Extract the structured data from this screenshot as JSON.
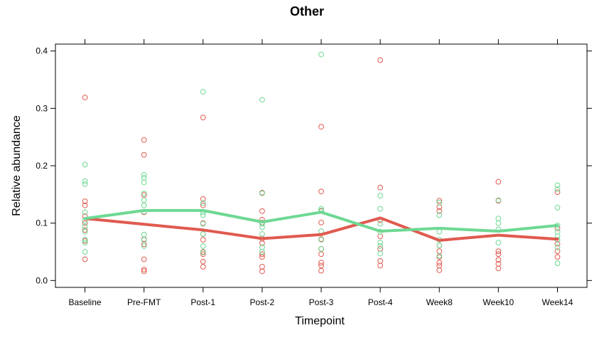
{
  "chart_data": {
    "type": "scatter",
    "title": "Other",
    "xlabel": "Timepoint",
    "ylabel": "Relative abundance",
    "categories": [
      "Baseline",
      "Pre-FMT",
      "Post-1",
      "Post-2",
      "Post-3",
      "Post-4",
      "Week8",
      "Week10",
      "Week14"
    ],
    "ylim": [
      -0.012,
      0.412
    ],
    "yticks": [
      0.0,
      0.1,
      0.2,
      0.3,
      0.4
    ],
    "grid": false,
    "series": [
      {
        "color": "#e05a4f",
        "mean_line": [
          0.108,
          0.098,
          0.088,
          0.073,
          0.08,
          0.109,
          0.07,
          0.079,
          0.072
        ],
        "points": [
          [
            0.319,
            0.138,
            0.131,
            0.112,
            0.1,
            0.088,
            0.069,
            0.037
          ],
          [
            0.245,
            0.219,
            0.149,
            0.119,
            0.072,
            0.063,
            0.037,
            0.019,
            0.016
          ],
          [
            0.284,
            0.142,
            0.131,
            0.1,
            0.081,
            0.071,
            0.05,
            0.046,
            0.033,
            0.024
          ],
          [
            0.153,
            0.121,
            0.106,
            0.101,
            0.073,
            0.065,
            0.046,
            0.041,
            0.024,
            0.016
          ],
          [
            0.268,
            0.155,
            0.121,
            0.101,
            0.072,
            0.055,
            0.046,
            0.031,
            0.026,
            0.017
          ],
          [
            0.384,
            0.162,
            0.105,
            0.077,
            0.055,
            0.034,
            0.026
          ],
          [
            0.139,
            0.128,
            0.121,
            0.061,
            0.051,
            0.041,
            0.031,
            0.026,
            0.018
          ],
          [
            0.172,
            0.139,
            0.051,
            0.046,
            0.036,
            0.029,
            0.021
          ],
          [
            0.154,
            0.091,
            0.064,
            0.051,
            0.041
          ]
        ]
      },
      {
        "color": "#6ed893",
        "mean_line": [
          0.108,
          0.122,
          0.122,
          0.102,
          0.119,
          0.086,
          0.091,
          0.086,
          0.096
        ],
        "points": [
          [
            0.202,
            0.173,
            0.168,
            0.119,
            0.104,
            0.094,
            0.085,
            0.071,
            0.066,
            0.05
          ],
          [
            0.184,
            0.179,
            0.171,
            0.152,
            0.14,
            0.131,
            0.12,
            0.08,
            0.071,
            0.06
          ],
          [
            0.329,
            0.135,
            0.119,
            0.114,
            0.099,
            0.081,
            0.06,
            0.049
          ],
          [
            0.315,
            0.152,
            0.099,
            0.093,
            0.081,
            0.058,
            0.05
          ],
          [
            0.394,
            0.125,
            0.122,
            0.086,
            0.071,
            0.055
          ],
          [
            0.148,
            0.125,
            0.099,
            0.085,
            0.066,
            0.06,
            0.047
          ],
          [
            0.136,
            0.114,
            0.085,
            0.071,
            0.061,
            0.043
          ],
          [
            0.14,
            0.108,
            0.1,
            0.089,
            0.066
          ],
          [
            0.166,
            0.159,
            0.127,
            0.096,
            0.085,
            0.077,
            0.071,
            0.058,
            0.03
          ]
        ]
      }
    ]
  }
}
